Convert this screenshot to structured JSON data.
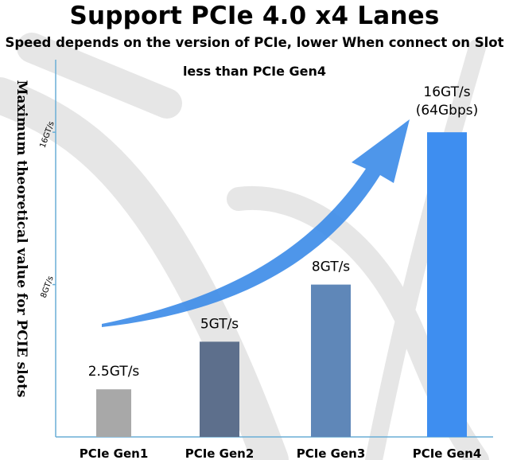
{
  "title": "Support PCIe 4.0 x4 Lanes",
  "subtitle": "Speed depends on the version of PCIe, lower When connect on Slot",
  "subtitle2": "less than PCIe Gen4",
  "colors": {
    "gen1": "#a8a8a8",
    "gen2": "#5d6f8c",
    "gen3": "#5f87b8",
    "gen4": "#3e8ef0",
    "arrow": "#3f8de8",
    "axis": "#6aaed6",
    "cable": "#c9c9c9"
  },
  "chart_data": {
    "type": "bar",
    "categories": [
      "PCIe Gen1",
      "PCIe Gen2",
      "PCIe Gen3",
      "PCIe Gen4"
    ],
    "values": [
      2.5,
      5,
      8,
      16
    ],
    "data_labels": [
      "2.5GT/s",
      "5GT/s",
      "8GT/s",
      "16GT/s"
    ],
    "extra_label": "(64Gbps)",
    "ylabel": "Maximum theoretical value for PCIE slots",
    "ytick_values": [
      8,
      16
    ],
    "ytick_labels": [
      "8GT/s",
      "16GT/s"
    ],
    "ylim": [
      0,
      16.3
    ],
    "grid": false,
    "trend_arrow": true
  }
}
